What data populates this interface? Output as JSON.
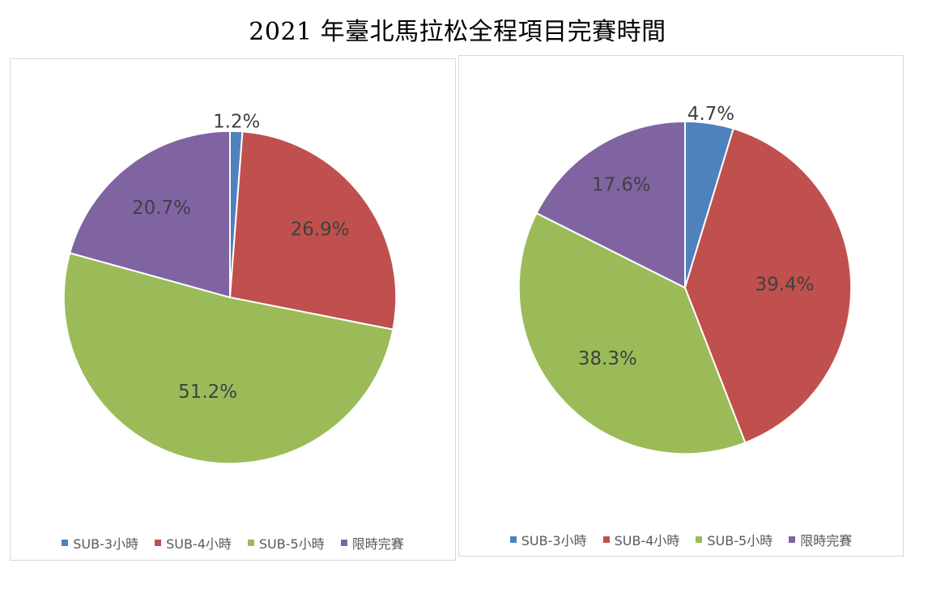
{
  "title": "2021 年臺北馬拉松全程項目完賽時間",
  "colors": [
    "#4f81bd",
    "#c0504d",
    "#9bbb59",
    "#8064a2"
  ],
  "chart_data": [
    {
      "type": "pie",
      "categories": [
        "SUB-3小時",
        "SUB-4小時",
        "SUB-5小時",
        "限時完賽"
      ],
      "values": [
        1.2,
        26.9,
        51.2,
        20.7
      ],
      "labels": [
        "1.2%",
        "26.9%",
        "51.2%",
        "20.7%"
      ],
      "legend": "bottom"
    },
    {
      "type": "pie",
      "categories": [
        "SUB-3小時",
        "SUB-4小時",
        "SUB-5小時",
        "限時完賽"
      ],
      "values": [
        4.7,
        39.4,
        38.3,
        17.6
      ],
      "labels": [
        "4.7%",
        "39.4%",
        "38.3%",
        "17.6%"
      ],
      "legend": "bottom"
    }
  ]
}
